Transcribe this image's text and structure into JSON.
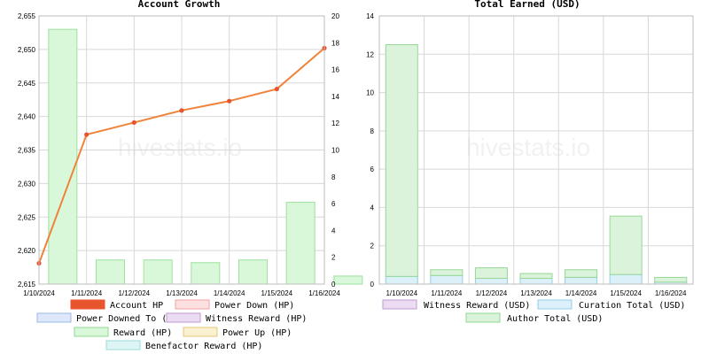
{
  "watermark": "hivestats.io",
  "chart_data": [
    {
      "type": "bar+line",
      "title": "Account Growth",
      "categories": [
        "1/10/2024",
        "1/11/2024",
        "1/12/2024",
        "1/13/2024",
        "1/14/2024",
        "1/15/2024",
        "1/16/2024"
      ],
      "left_axis": {
        "min": 2615,
        "max": 2655,
        "ticks": [
          2615,
          2620,
          2625,
          2630,
          2635,
          2640,
          2645,
          2650,
          2655
        ]
      },
      "right_axis": {
        "min": 0,
        "max": 20,
        "ticks": [
          0,
          2,
          4,
          6,
          8,
          10,
          12,
          14,
          16,
          18,
          20
        ]
      },
      "series": [
        {
          "name": "Account HP",
          "type": "line",
          "axis": "left",
          "color": "#e8542c",
          "values": [
            2618.1,
            2637.3,
            2639.1,
            2640.9,
            2642.3,
            2644.1,
            2650.2
          ]
        },
        {
          "name": "Reward (HP)",
          "type": "bar",
          "axis": "right",
          "color": "#d9f7d9",
          "stroke": "#9ee29e",
          "values": [
            19.0,
            1.8,
            1.8,
            1.6,
            1.8,
            6.1,
            0.6
          ]
        }
      ],
      "legend": [
        {
          "label": "Account HP",
          "color": "#e8542c",
          "stroke": "#e8542c"
        },
        {
          "label": "Power Down (HP)",
          "color": "#fde0e0",
          "stroke": "#f2a0a0"
        },
        {
          "label": "Power Downed To (HP)",
          "color": "#dde8fb",
          "stroke": "#9db8ea"
        },
        {
          "label": "Witness Reward (HP)",
          "color": "#ecdcf3",
          "stroke": "#c09ad3"
        },
        {
          "label": "Reward (HP)",
          "color": "#d9f7d9",
          "stroke": "#8fd88f"
        },
        {
          "label": "Power Up (HP)",
          "color": "#fbf0cf",
          "stroke": "#e3c878"
        },
        {
          "label": "Benefactor Reward (HP)",
          "color": "#def5f5",
          "stroke": "#9edcdc"
        }
      ]
    },
    {
      "type": "stacked-bar",
      "title": "Total Earned (USD)",
      "categories": [
        "1/10/2024",
        "1/11/2024",
        "1/12/2024",
        "1/13/2024",
        "1/14/2024",
        "1/15/2024",
        "1/16/2024"
      ],
      "y_axis": {
        "min": 0,
        "max": 14,
        "ticks": [
          0,
          2,
          4,
          6,
          8,
          10,
          12,
          14
        ]
      },
      "series": [
        {
          "name": "Witness Reward (USD)",
          "color": "#ecdcf3",
          "stroke": "#c09ad3",
          "values": [
            0,
            0,
            0,
            0,
            0,
            0,
            0
          ]
        },
        {
          "name": "Curation Total (USD)",
          "color": "#dcf0f9",
          "stroke": "#93cde8",
          "values": [
            0.4,
            0.45,
            0.3,
            0.3,
            0.35,
            0.5,
            0.1
          ]
        },
        {
          "name": "Author Total (USD)",
          "color": "#daf3da",
          "stroke": "#95d895",
          "values": [
            12.1,
            0.3,
            0.55,
            0.25,
            0.4,
            3.05,
            0.25
          ]
        }
      ],
      "legend": [
        {
          "label": "Witness Reward (USD)",
          "color": "#ecdcf3",
          "stroke": "#c09ad3"
        },
        {
          "label": "Curation Total (USD)",
          "color": "#dcf0f9",
          "stroke": "#93cde8"
        },
        {
          "label": "Author Total (USD)",
          "color": "#daf3da",
          "stroke": "#8fd88f"
        }
      ]
    }
  ]
}
